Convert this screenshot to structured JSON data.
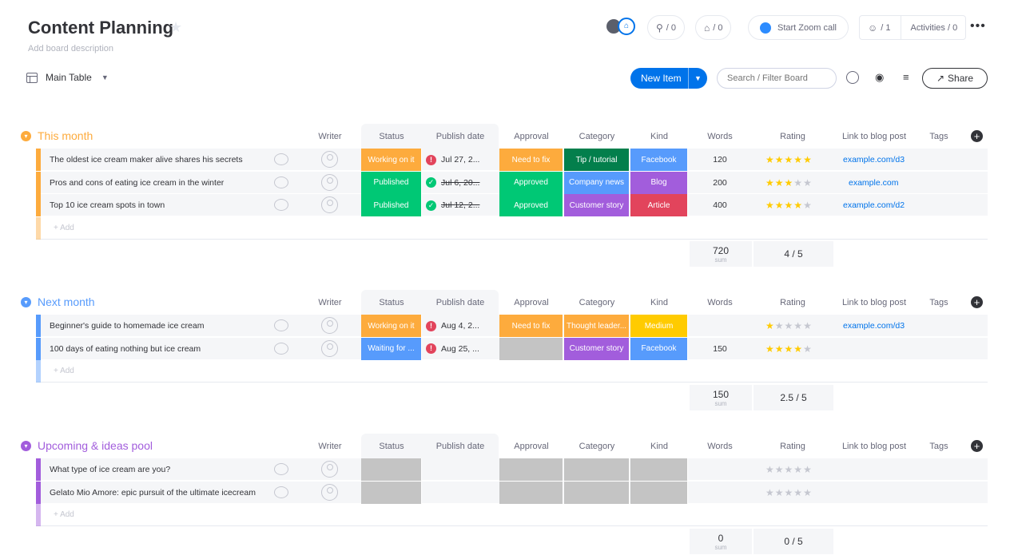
{
  "board": {
    "title": "Content Planning",
    "description": "Add board description",
    "view": "Main Table"
  },
  "toolbar": {
    "invite_count": "/ 0",
    "integrations_count": "/ 0",
    "zoom_label": "Start Zoom call",
    "members_count": "/ 1",
    "activities_label": "Activities / 0",
    "new_item_label": "New Item",
    "search_placeholder": "Search / Filter Board",
    "share_label": "Share"
  },
  "columns": {
    "writer": "Writer",
    "status": "Status",
    "publish_date": "Publish date",
    "approval": "Approval",
    "category": "Category",
    "kind": "Kind",
    "words": "Words",
    "rating": "Rating",
    "link": "Link to blog post",
    "tags": "Tags"
  },
  "add_label": "+ Add",
  "sum_label": "sum",
  "groups": [
    {
      "name": "This month",
      "color": "#fdab3d",
      "rows": [
        {
          "name": "The oldest ice cream maker alive shares his secrets",
          "status": "Working on it",
          "status_color": "#fdab3d",
          "date": "Jul 27, 2...",
          "date_state": "overdue",
          "approval": "Need to fix",
          "approval_color": "#fdab3d",
          "category": "Tip / tutorial",
          "category_color": "#037f4c",
          "kind": "Facebook",
          "kind_color": "#579bfc",
          "words": "120",
          "rating": 5,
          "link": "example.com/d3"
        },
        {
          "name": "Pros and cons of eating ice cream in the winter",
          "status": "Published",
          "status_color": "#00c875",
          "date": "Jul 6, 20...",
          "date_state": "done",
          "approval": "Approved",
          "approval_color": "#00c875",
          "category": "Company news",
          "category_color": "#579bfc",
          "kind": "Blog",
          "kind_color": "#a25ddc",
          "words": "200",
          "rating": 3,
          "link": "example.com"
        },
        {
          "name": "Top 10 ice cream spots in town",
          "status": "Published",
          "status_color": "#00c875",
          "date": "Jul 12, 2...",
          "date_state": "done",
          "approval": "Approved",
          "approval_color": "#00c875",
          "category": "Customer story",
          "category_color": "#a25ddc",
          "kind": "Article",
          "kind_color": "#e2445c",
          "words": "400",
          "rating": 4,
          "link": "example.com/d2"
        }
      ],
      "sum_words": "720",
      "sum_rating": "4 / 5"
    },
    {
      "name": "Next month",
      "color": "#579bfc",
      "rows": [
        {
          "name": "Beginner's guide to homemade ice cream",
          "status": "Working on it",
          "status_color": "#fdab3d",
          "date": "Aug 4, 2...",
          "date_state": "overdue",
          "approval": "Need to fix",
          "approval_color": "#fdab3d",
          "category": "Thought leader...",
          "category_color": "#fdab3d",
          "kind": "Medium",
          "kind_color": "#ffcb00",
          "words": "",
          "rating": 1,
          "link": "example.com/d3"
        },
        {
          "name": "100 days of eating nothing but ice cream",
          "status": "Waiting for ...",
          "status_color": "#579bfc",
          "date": "Aug 25, ...",
          "date_state": "overdue",
          "approval": "",
          "approval_color": "#c4c4c4",
          "category": "Customer story",
          "category_color": "#a25ddc",
          "kind": "Facebook",
          "kind_color": "#579bfc",
          "words": "150",
          "rating": 4,
          "link": ""
        }
      ],
      "sum_words": "150",
      "sum_rating": "2.5 / 5"
    },
    {
      "name": "Upcoming & ideas pool",
      "color": "#a25ddc",
      "rows": [
        {
          "name": "What type of ice cream are you?",
          "status": "",
          "status_color": "#c4c4c4",
          "date": "",
          "date_state": "none",
          "approval": "",
          "approval_color": "#c4c4c4",
          "category": "",
          "category_color": "#c4c4c4",
          "kind": "",
          "kind_color": "#c4c4c4",
          "words": "",
          "rating": 0,
          "link": ""
        },
        {
          "name": "Gelato Mio Amore: epic pursuit of the ultimate icecream",
          "status": "",
          "status_color": "#c4c4c4",
          "date": "",
          "date_state": "none",
          "approval": "",
          "approval_color": "#c4c4c4",
          "category": "",
          "category_color": "#c4c4c4",
          "kind": "",
          "kind_color": "#c4c4c4",
          "words": "",
          "rating": 0,
          "link": ""
        }
      ],
      "sum_words": "0",
      "sum_rating": "0 / 5"
    }
  ]
}
